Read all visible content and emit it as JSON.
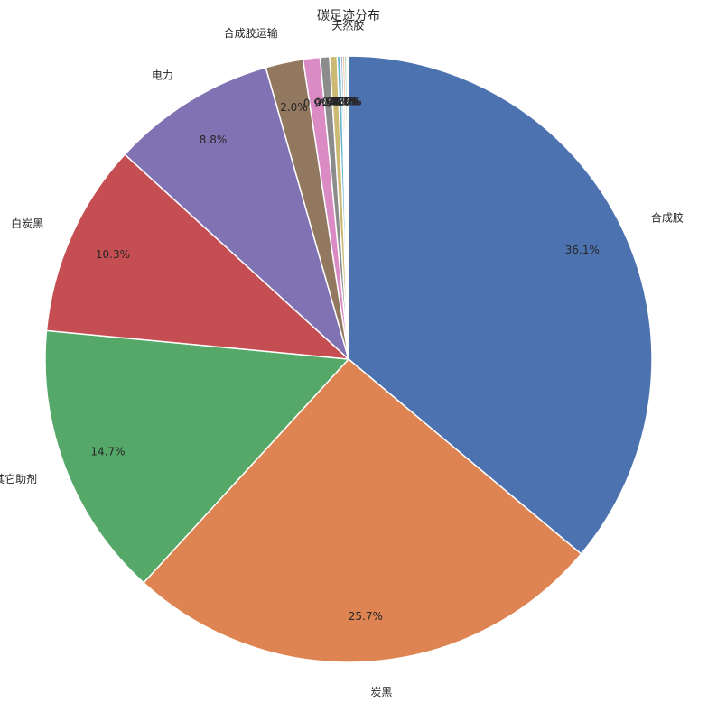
{
  "chart_data": {
    "type": "pie",
    "title": "碳足迹分布",
    "categories": [
      "合成胶",
      "炭黑",
      "其它助剂",
      "白炭黑",
      "电力",
      "合成胶运输",
      "",
      "",
      "",
      "",
      "",
      "",
      "",
      "",
      "天然胶"
    ],
    "values": [
      36.1,
      25.7,
      14.7,
      10.3,
      8.8,
      2.0,
      0.9,
      0.5,
      0.4,
      0.2,
      0.1,
      0.1,
      0.1,
      0.05,
      0.05
    ],
    "labels": [
      "36.1%",
      "25.7%",
      "14.7%",
      "10.3%",
      "8.8%",
      "2.0%",
      "0.9%",
      "0.5%",
      "0.4%",
      "0.2%",
      "0.1%",
      "0.1%",
      "0.1%",
      "0.0%",
      "0.0%"
    ],
    "colors": [
      "#4c72b0",
      "#dd8452",
      "#55a868",
      "#c44e52",
      "#8172b3",
      "#937860",
      "#da8bc3",
      "#8c8c8c",
      "#ccb974",
      "#64b5cd",
      "#4c72b0",
      "#dd8452",
      "#55a868",
      "#c44e52",
      "#8172b3"
    ],
    "start_angle": 90,
    "direction": "clockwise",
    "legend": "none"
  }
}
